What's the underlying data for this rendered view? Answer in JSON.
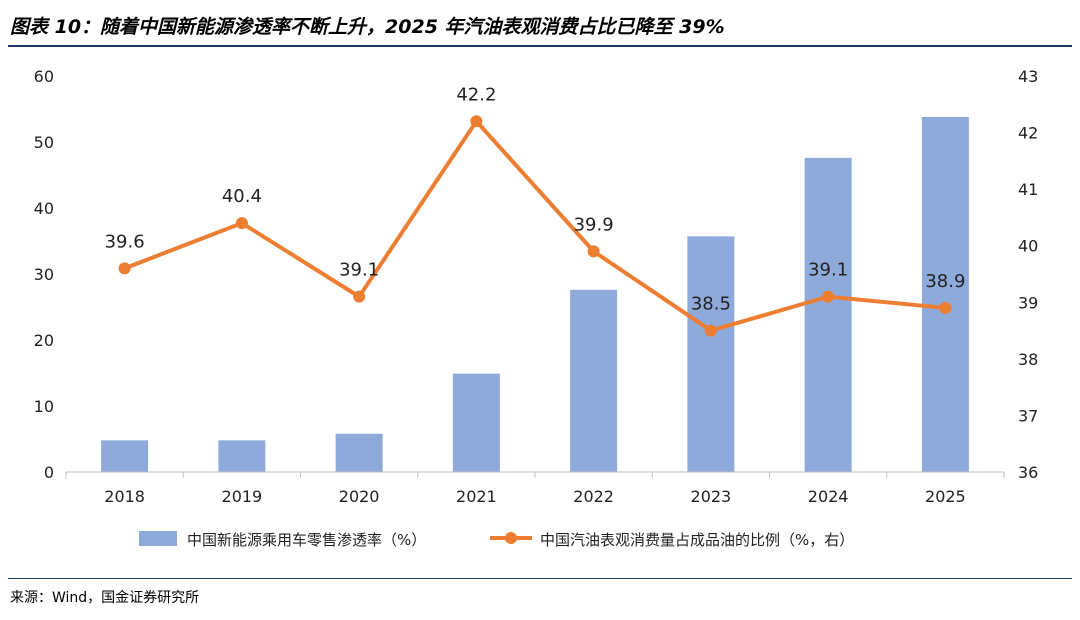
{
  "title": "图表 10：随着中国新能源渗透率不断上升，2025 年汽油表观消费占比已降至 39%",
  "source": "来源：Wind，国金证券研究所",
  "colors": {
    "bar": "#8eaadb",
    "line": "#ed7d31",
    "axis": "#bfbfbf",
    "rule": "#1f3864"
  },
  "chart_data": {
    "type": "bar+line",
    "categories": [
      "2018",
      "2019",
      "2020",
      "2021",
      "2022",
      "2023",
      "2024",
      "2025"
    ],
    "series": [
      {
        "name": "中国新能源乘用车零售渗透率（%）",
        "type": "bar",
        "axis": "left",
        "values": [
          4.8,
          4.8,
          5.8,
          14.9,
          27.6,
          35.7,
          47.6,
          53.8
        ]
      },
      {
        "name": "中国汽油表观消费量占成品油的比例（%，右）",
        "type": "line",
        "axis": "right",
        "values": [
          39.6,
          40.4,
          39.1,
          42.2,
          39.9,
          38.5,
          39.1,
          38.9
        ],
        "labels": [
          "39.6",
          "40.4",
          "39.1",
          "42.2",
          "39.9",
          "38.5",
          "39.1",
          "38.9"
        ]
      }
    ],
    "y_left": {
      "min": 0,
      "max": 60,
      "ticks": [
        "0",
        "10",
        "20",
        "30",
        "40",
        "50",
        "60"
      ]
    },
    "y_right": {
      "min": 36,
      "max": 43,
      "ticks": [
        "36",
        "37",
        "38",
        "39",
        "40",
        "41",
        "42",
        "43"
      ]
    },
    "legend_position": "bottom"
  }
}
